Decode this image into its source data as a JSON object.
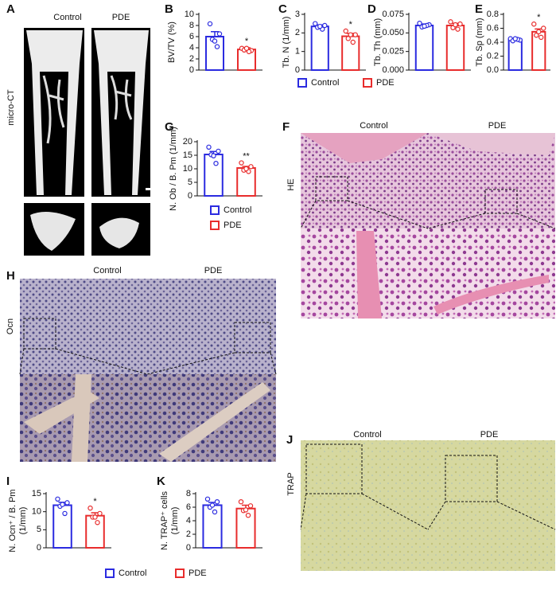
{
  "chart_data": [
    {
      "type": "bar",
      "panel": "B",
      "ylabel": [
        "BV/TV (%)"
      ],
      "categories": [
        null,
        null
      ],
      "values": [
        6.0,
        3.7
      ],
      "errors": [
        0.9,
        0.3
      ],
      "points": [
        [
          8.3,
          6.5,
          5.5,
          4.2,
          5.2
        ],
        [
          3.9,
          3.5,
          3.6,
          3.3,
          3.9
        ]
      ],
      "significance": [
        null,
        "*"
      ],
      "colors": [
        "#2b2be0",
        "#e82c2c"
      ],
      "ylim": [
        0,
        10
      ],
      "yticks": [
        0,
        2,
        4,
        6,
        8,
        10
      ]
    },
    {
      "type": "bar",
      "panel": "C",
      "ylabel": [
        "Tb. N (1/mm)"
      ],
      "categories": [
        null,
        null
      ],
      "values": [
        2.35,
        1.82
      ],
      "errors": [
        0.08,
        0.15
      ],
      "points": [
        [
          2.5,
          2.4,
          2.3,
          2.2,
          2.35
        ],
        [
          2.1,
          1.9,
          1.7,
          1.5,
          1.9
        ]
      ],
      "significance": [
        null,
        "*"
      ],
      "colors": [
        "#2b2be0",
        "#e82c2c"
      ],
      "ylim": [
        0,
        3
      ],
      "yticks": [
        0,
        1,
        2,
        3
      ]
    },
    {
      "type": "bar",
      "panel": "D",
      "ylabel": [
        "Tb. Th (mm)"
      ],
      "categories": [
        null,
        null
      ],
      "values": [
        0.06,
        0.06
      ],
      "errors": [
        0.002,
        0.003
      ],
      "points": [
        [
          0.063,
          0.061,
          0.058,
          0.06,
          0.059
        ],
        [
          0.065,
          0.062,
          0.057,
          0.055,
          0.061
        ]
      ],
      "significance": [
        null,
        null
      ],
      "colors": [
        "#2b2be0",
        "#e82c2c"
      ],
      "ylim": [
        0,
        0.075
      ],
      "yticks": [
        {
          "value": 0,
          "label": "0.000"
        },
        {
          "value": 0.025,
          "label": "0.025"
        },
        {
          "value": 0.05,
          "label": "0.050"
        },
        0.075
      ]
    },
    {
      "type": "bar",
      "panel": "E",
      "ylabel": [
        "Tb. Sp (mm)"
      ],
      "categories": [
        null,
        null
      ],
      "values": [
        0.44,
        0.55
      ],
      "errors": [
        0.01,
        0.04
      ],
      "points": [
        [
          0.45,
          0.43,
          0.42,
          0.44,
          0.45
        ],
        [
          0.66,
          0.6,
          0.5,
          0.47,
          0.55
        ]
      ],
      "significance": [
        null,
        "*"
      ],
      "colors": [
        "#2b2be0",
        "#e82c2c"
      ],
      "ylim": [
        0,
        0.8
      ],
      "yticks": [
        {
          "value": 0,
          "label": "0.0"
        },
        0.2,
        0.4,
        0.6,
        0.8
      ]
    },
    {
      "type": "bar",
      "panel": "G",
      "ylabel": [
        "N. Ob / B. Pm (1/mm)"
      ],
      "categories": [
        null,
        null
      ],
      "values": [
        15.3,
        10.3
      ],
      "errors": [
        1.1,
        0.6
      ],
      "points": [
        [
          18.0,
          16.5,
          15.2,
          12.0,
          14.8
        ],
        [
          12.2,
          10.8,
          9.5,
          9.0,
          10.0
        ]
      ],
      "significance": [
        null,
        "**"
      ],
      "colors": [
        "#2b2be0",
        "#e82c2c"
      ],
      "ylim": [
        0,
        20
      ],
      "yticks": [
        0,
        5,
        10,
        15,
        20
      ]
    },
    {
      "type": "bar",
      "panel": "I",
      "ylabel": [
        "N. Ocn⁺ / B. Pm",
        "(1/mm)"
      ],
      "categories": [
        null,
        null
      ],
      "values": [
        11.8,
        8.9
      ],
      "errors": [
        0.8,
        0.8
      ],
      "points": [
        [
          13.5,
          12.5,
          11.5,
          9.5,
          12.0
        ],
        [
          11.0,
          9.5,
          8.5,
          7.0,
          8.5
        ]
      ],
      "significance": [
        null,
        "*"
      ],
      "colors": [
        "#2b2be0",
        "#e82c2c"
      ],
      "ylim": [
        0,
        15
      ],
      "yticks": [
        0,
        5,
        10,
        15
      ]
    },
    {
      "type": "bar",
      "panel": "K",
      "ylabel": [
        "N. TRAP⁺ cells",
        "(1/mm)"
      ],
      "categories": [
        null,
        null
      ],
      "values": [
        6.3,
        5.8
      ],
      "errors": [
        0.4,
        0.5
      ],
      "points": [
        [
          7.2,
          6.8,
          6.0,
          5.3,
          6.3
        ],
        [
          6.8,
          6.2,
          5.5,
          4.8,
          5.6
        ]
      ],
      "significance": [
        null,
        null
      ],
      "colors": [
        "#2b2be0",
        "#e82c2c"
      ],
      "ylim": [
        0,
        8
      ],
      "yticks": [
        0,
        2,
        4,
        6,
        8
      ]
    }
  ],
  "legends": [
    {
      "items": [
        {
          "label": "Control",
          "color": "#2b2be0"
        },
        {
          "label": "PDE",
          "color": "#e82c2c"
        }
      ]
    },
    {
      "items": [
        {
          "label": "Control",
          "color": "#2b2be0"
        },
        {
          "label": "PDE",
          "color": "#e82c2c"
        }
      ]
    },
    {
      "items": [
        {
          "label": "Control",
          "color": "#2b2be0"
        },
        {
          "label": "PDE",
          "color": "#e82c2c"
        }
      ]
    }
  ],
  "image_panels": [
    {
      "letter": "A",
      "columns": [
        "Control",
        "PDE"
      ],
      "row_label": "micro-CT"
    },
    {
      "letter": "F",
      "columns": [
        "Control",
        "PDE"
      ],
      "row_label": "HE"
    },
    {
      "letter": "H",
      "columns": [
        "Control",
        "PDE"
      ],
      "row_label": "Ocn"
    },
    {
      "letter": "J",
      "columns": [
        "Control",
        "PDE"
      ],
      "row_label": "TRAP"
    }
  ]
}
